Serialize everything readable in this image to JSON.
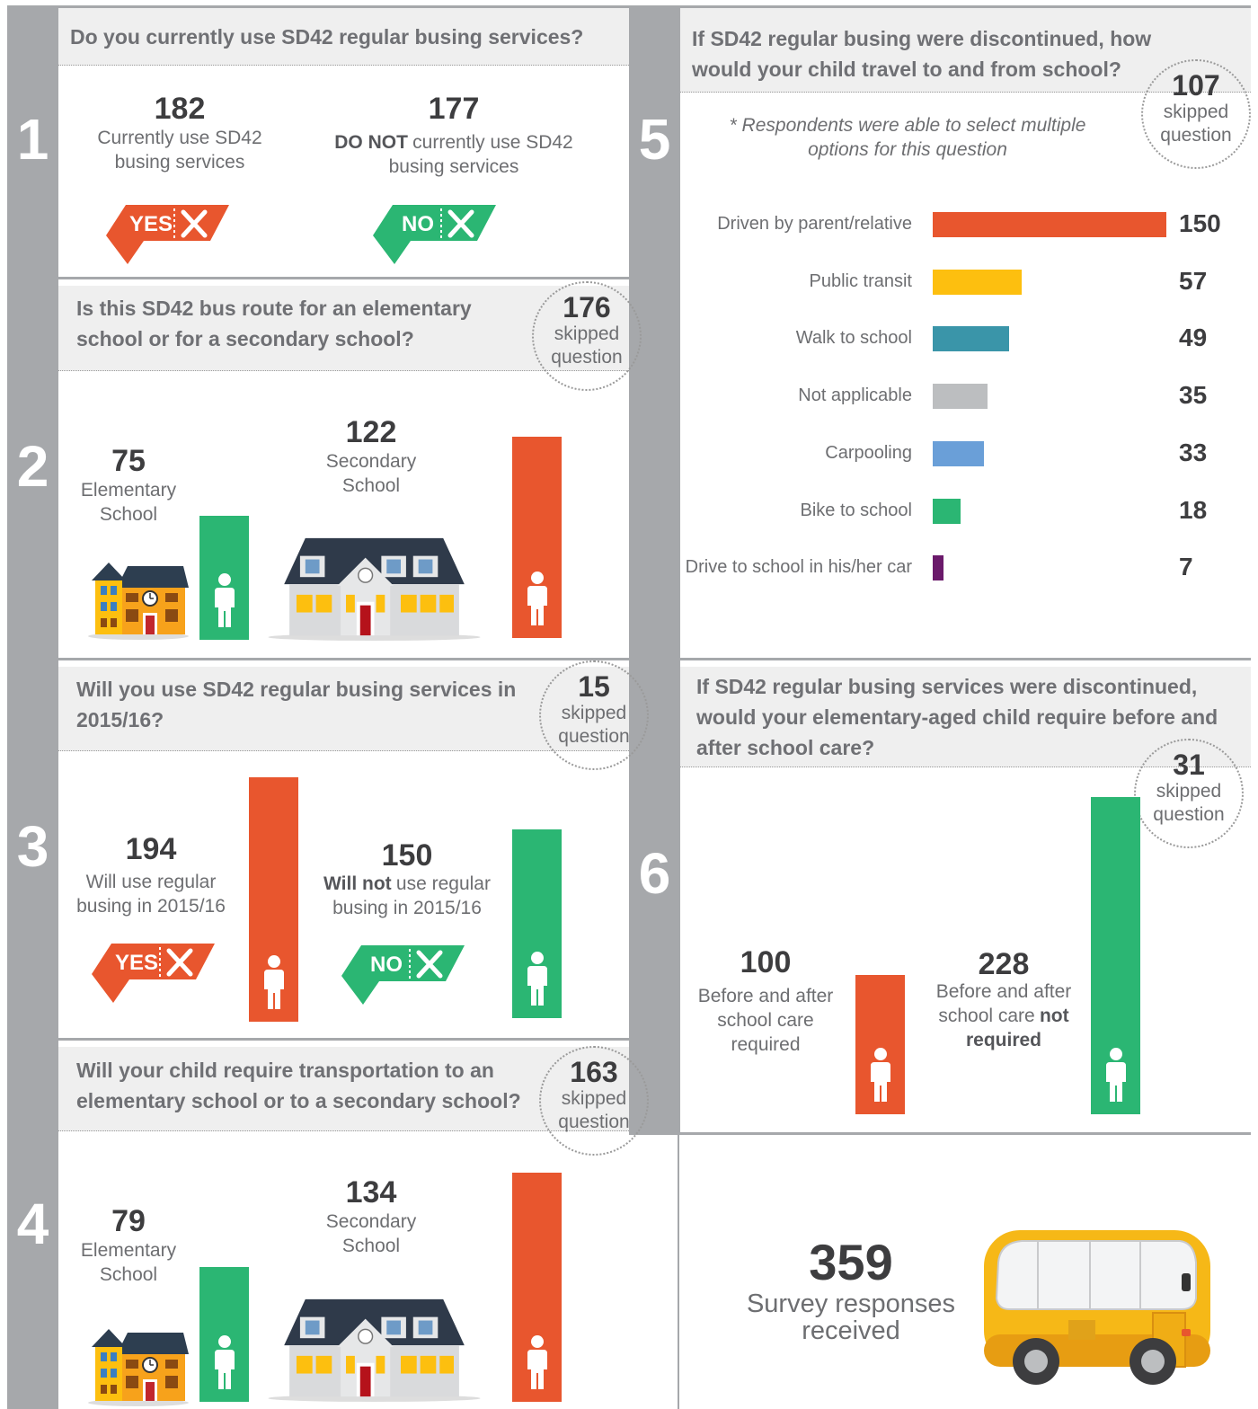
{
  "sections": [
    {
      "number": "1",
      "question": "Do you currently use SD42 regular busing services?",
      "items": [
        {
          "value": 182,
          "label": [
            {
              "text": "Currently use SD42 busing services"
            }
          ],
          "badge": "YES",
          "color": "#e8562e"
        },
        {
          "value": 177,
          "label": [
            {
              "text": "DO NOT",
              "bold": true
            },
            {
              "text": "currently use SD42 busing services"
            }
          ],
          "badge": "NO",
          "color": "#2bb673"
        }
      ]
    },
    {
      "number": "2",
      "question": "Is this SD42 bus route for an elementary school or for a secondary school?",
      "skipped": 176,
      "skipped_label": "skipped question",
      "items": [
        {
          "value": 75,
          "label": [
            {
              "text": "Elementary School"
            }
          ],
          "color": "#2bb673"
        },
        {
          "value": 122,
          "label": [
            {
              "text": "Secondary School"
            }
          ],
          "color": "#e8562e"
        }
      ]
    },
    {
      "number": "3",
      "question": "Will you use SD42 regular busing services in 2015/16?",
      "skipped": 15,
      "skipped_label": "skipped question",
      "items": [
        {
          "value": 194,
          "label": [
            {
              "text": "Will use regular busing in 2015/16"
            }
          ],
          "badge": "YES",
          "color": "#e8562e"
        },
        {
          "value": 150,
          "label": [
            {
              "text": "Will not",
              "bold": true
            },
            {
              "text": "use regular busing in 2015/16"
            }
          ],
          "badge": "NO",
          "color": "#2bb673"
        }
      ]
    },
    {
      "number": "4",
      "question": "Will your child require transportation to an elementary school or to a secondary school?",
      "skipped": 163,
      "skipped_label": "skipped question",
      "items": [
        {
          "value": 79,
          "label": [
            {
              "text": "Elementary School"
            }
          ],
          "color": "#2bb673"
        },
        {
          "value": 134,
          "label": [
            {
              "text": "Secondary School"
            }
          ],
          "color": "#e8562e"
        }
      ]
    },
    {
      "number": "5",
      "question": "If SD42 regular busing were discontinued, how would your child travel to and from school?",
      "skipped": 107,
      "skipped_label": "skipped question",
      "note": "* Respondents were able to select multiple options for this question",
      "categories": [
        "Driven by parent/relative",
        "Public transit",
        "Walk to school",
        "Not applicable",
        "Carpooling",
        "Bike to school",
        "Drive to school in his/her car"
      ],
      "values": [
        150,
        57,
        49,
        35,
        33,
        18,
        7
      ],
      "colors": [
        "#e8562e",
        "#fdbf0f",
        "#3a95a9",
        "#bcbec0",
        "#6a9fd8",
        "#2bb673",
        "#6b1a6b"
      ]
    },
    {
      "number": "6",
      "question": "If SD42 regular busing services were discontinued, would your elementary-aged child require before and after school care?",
      "skipped": 31,
      "skipped_label": "skipped question",
      "items": [
        {
          "value": 100,
          "label": [
            {
              "text": "Before and after school care required"
            }
          ],
          "color": "#e8562e"
        },
        {
          "value": 228,
          "label": [
            {
              "text": "Before and after school care"
            },
            {
              "text": "not required",
              "bold": true
            }
          ],
          "color": "#2bb673"
        }
      ]
    }
  ],
  "total": {
    "value": 359,
    "label": "Survey responses received"
  }
}
